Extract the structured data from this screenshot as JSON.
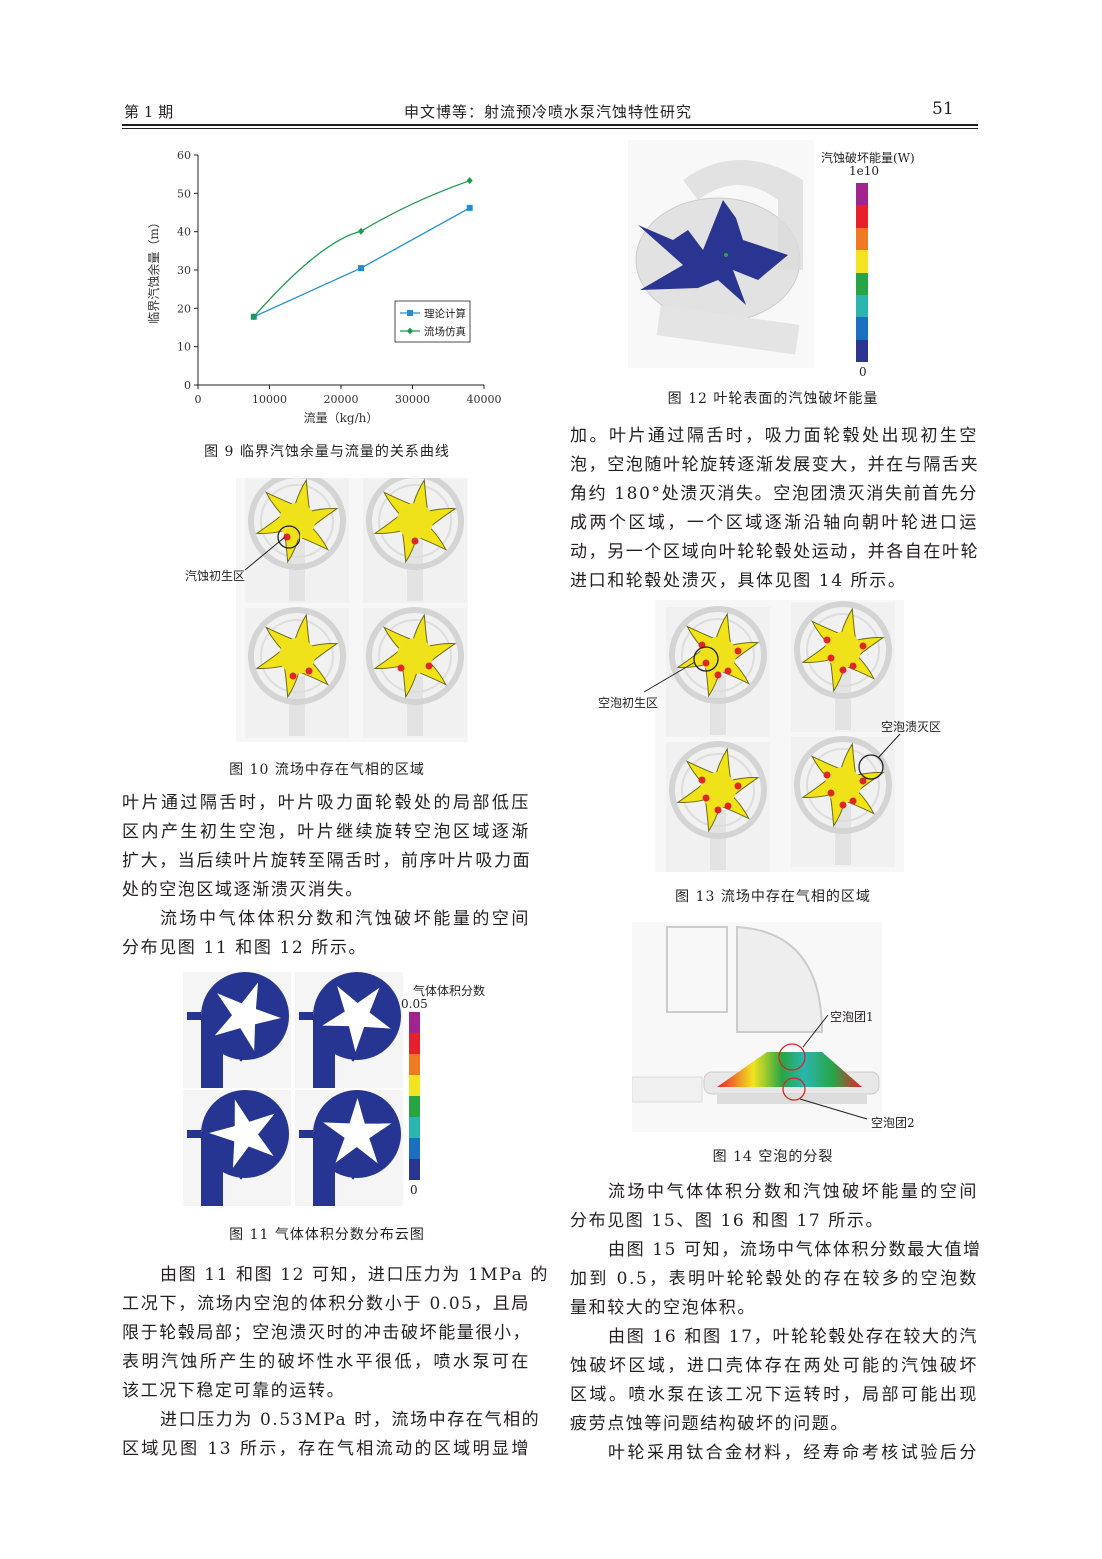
{
  "header": {
    "issue": "第 1 期",
    "title": "申文博等：射流预冷喷水泵汽蚀特性研究",
    "page_number": "51"
  },
  "figures": {
    "fig9": {
      "caption": "图 9   临界汽蚀余量与流量的关系曲线"
    },
    "fig10": {
      "caption": "图 10   流场中存在气相的区域",
      "annotation": "汽蚀初生区"
    },
    "fig11": {
      "caption": "图 11   气体体积分数分布云图",
      "colorbar_title": "气体体积分数",
      "colorbar_max": "0.05",
      "colorbar_min": "0",
      "colorbar_colors": [
        "#a0248e",
        "#e8202a",
        "#f07a22",
        "#f2e421",
        "#27a545",
        "#2bb5b0",
        "#1a6fc0",
        "#2a3591"
      ]
    },
    "fig12": {
      "caption": "图 12   叶轮表面的汽蚀破坏能量",
      "colorbar_title": "汽蚀破坏能量(W)",
      "colorbar_max": "1e10",
      "colorbar_min": "0",
      "colorbar_colors": [
        "#a0248e",
        "#e8202a",
        "#f07a22",
        "#f2e421",
        "#27a545",
        "#2bb5b0",
        "#1a6fc0",
        "#2a3591"
      ]
    },
    "fig13": {
      "caption": "图 13   流场中存在气相的区域",
      "annotation_inception": "空泡初生区",
      "annotation_collapse": "空泡溃灭区"
    },
    "fig14": {
      "caption": "图 14   空泡的分裂",
      "annotation_1": "空泡团1",
      "annotation_2": "空泡团2"
    }
  },
  "chart_data": {
    "type": "line",
    "title": "",
    "xlabel": "流量（kg/h）",
    "ylabel": "临界汽蚀余量（m）",
    "xlim": [
      0,
      40000
    ],
    "ylim": [
      0,
      60
    ],
    "xticks": [
      "0",
      "10000",
      "20000",
      "30000",
      "40000"
    ],
    "yticks": [
      "0",
      "10",
      "20",
      "30",
      "40",
      "50",
      "60"
    ],
    "grid": false,
    "legend_position": "right",
    "x": [
      7800,
      22800,
      38000
    ],
    "series": [
      {
        "name": "理论计算",
        "values": [
          17.8,
          30.5,
          46.2
        ],
        "color": "#1f8fd0",
        "marker": "square"
      },
      {
        "name": "流场仿真",
        "values": [
          17.8,
          40.1,
          53.3
        ],
        "color": "#1c9a4c",
        "marker": "diamond"
      }
    ]
  },
  "body": {
    "left_a": [
      {
        "lines": [
          "叶片通过隔舌时，叶片吸力面轮毂处的局部低压",
          "区内产生初生空泡，叶片继续旋转空泡区域逐渐",
          "扩大，当后续叶片旋转至隔舌时，前序叶片吸力面",
          "处的空泡区域逐渐溃灭消失。"
        ],
        "indent": false
      },
      {
        "lines": [
          "流场中气体体积分数和汽蚀破坏能量的空间",
          "分布见图 11 和图 12 所示。"
        ],
        "indent": true
      }
    ],
    "left_b": [
      {
        "lines": [
          "由图 11 和图 12 可知，进口压力为 1MPa 的",
          "工况下，流场内空泡的体积分数小于 0.05，且局",
          "限于轮毂局部；空泡溃灭时的冲击破坏能量很小，",
          "表明汽蚀所产生的破坏性水平很低，喷水泵可在",
          "该工况下稳定可靠的运转。"
        ],
        "indent": true
      },
      {
        "lines": [
          "进口压力为 0.53MPa 时，流场中存在气相的",
          "区域见图 13 所示，存在气相流动的区域明显增"
        ],
        "indent": true,
        "continues": true
      }
    ],
    "right_a": [
      {
        "lines": [
          "加。叶片通过隔舌时，吸力面轮毂处出现初生空",
          "泡，空泡随叶轮旋转逐渐发展变大，并在与隔舌夹",
          "角约 180°处溃灭消失。空泡团溃灭消失前首先分",
          "成两个区域，一个区域逐渐沿轴向朝叶轮进口运",
          "动，另一个区域向叶轮轮毂处运动，并各自在叶轮",
          "进口和轮毂处溃灭，具体见图 14 所示。"
        ],
        "indent": false
      }
    ],
    "right_b": [
      {
        "lines": [
          "流场中气体体积分数和汽蚀破坏能量的空间",
          "分布见图 15、图 16 和图 17 所示。"
        ],
        "indent": true
      },
      {
        "lines": [
          "由图 15 可知，流场中气体体积分数最大值增",
          "加到 0.5，表明叶轮轮毂处的存在较多的空泡数",
          "量和较大的空泡体积。"
        ],
        "indent": true
      },
      {
        "lines": [
          "由图 16 和图 17，叶轮轮毂处存在较大的汽",
          "蚀破坏区域，进口壳体存在两处可能的汽蚀破坏",
          "区域。喷水泵在该工况下运转时，局部可能出现",
          "疲劳点蚀等问题结构破坏的问题。"
        ],
        "indent": true
      },
      {
        "lines": [
          "叶轮采用钛合金材料，经寿命考核试验后分"
        ],
        "indent": true,
        "continues": true
      }
    ]
  }
}
